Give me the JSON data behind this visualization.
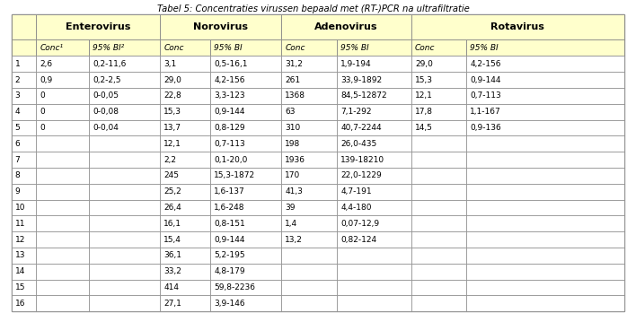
{
  "title": "Tabel 5: Concentraties virussen bepaald met (RT-)PCR na ultrafiltratie",
  "header_bg": "#FFFFCC",
  "border_color": "#888888",
  "body_bg": "#FFFFFF",
  "col_groups": [
    "Enterovirus",
    "Norovirus",
    "Adenovirus",
    "Rotavirus"
  ],
  "row_labels": [
    "1",
    "2",
    "3",
    "4",
    "5",
    "6",
    "7",
    "8",
    "9",
    "10",
    "11",
    "12",
    "13",
    "14",
    "15",
    "16"
  ],
  "data": {
    "entero_conc": [
      "2,6",
      "0,9",
      "0",
      "0",
      "0",
      "",
      "",
      "",
      "",
      "",
      "",
      "",
      "",
      "",
      "",
      ""
    ],
    "entero_bi": [
      "0,2-11,6",
      "0,2-2,5",
      "0-0,05",
      "0-0,08",
      "0-0,04",
      "",
      "",
      "",
      "",
      "",
      "",
      "",
      "",
      "",
      "",
      ""
    ],
    "noro_conc": [
      "3,1",
      "29,0",
      "22,8",
      "15,3",
      "13,7",
      "12,1",
      "2,2",
      "245",
      "25,2",
      "26,4",
      "16,1",
      "15,4",
      "36,1",
      "33,2",
      "414",
      "27,1"
    ],
    "noro_bi": [
      "0,5-16,1",
      "4,2-156",
      "3,3-123",
      "0,9-144",
      "0,8-129",
      "0,7-113",
      "0,1-20,0",
      "15,3-1872",
      "1,6-137",
      "1,6-248",
      "0,8-151",
      "0,9-144",
      "5,2-195",
      "4,8-179",
      "59,8-2236",
      "3,9-146"
    ],
    "adeno_conc": [
      "31,2",
      "261",
      "1368",
      "63",
      "310",
      "198",
      "1936",
      "170",
      "41,3",
      "39",
      "1,4",
      "13,2",
      "",
      "",
      "",
      ""
    ],
    "adeno_bi": [
      "1,9-194",
      "33,9-1892",
      "84,5-12872",
      "7,1-292",
      "40,7-2244",
      "26,0-435",
      "139-18210",
      "22,0-1229",
      "4,7-191",
      "4,4-180",
      "0,07-12,9",
      "0,82-124",
      "",
      "",
      "",
      ""
    ],
    "rota_conc": [
      "29,0",
      "15,3",
      "12,1",
      "17,8",
      "14,5",
      "",
      "",
      "",
      "",
      "",
      "",
      "",
      "",
      "",
      "",
      ""
    ],
    "rota_bi": [
      "4,2-156",
      "0,9-144",
      "0,7-113",
      "1,1-167",
      "0,9-136",
      "",
      "",
      "",
      "",
      "",
      "",
      "",
      "",
      "",
      "",
      ""
    ]
  }
}
